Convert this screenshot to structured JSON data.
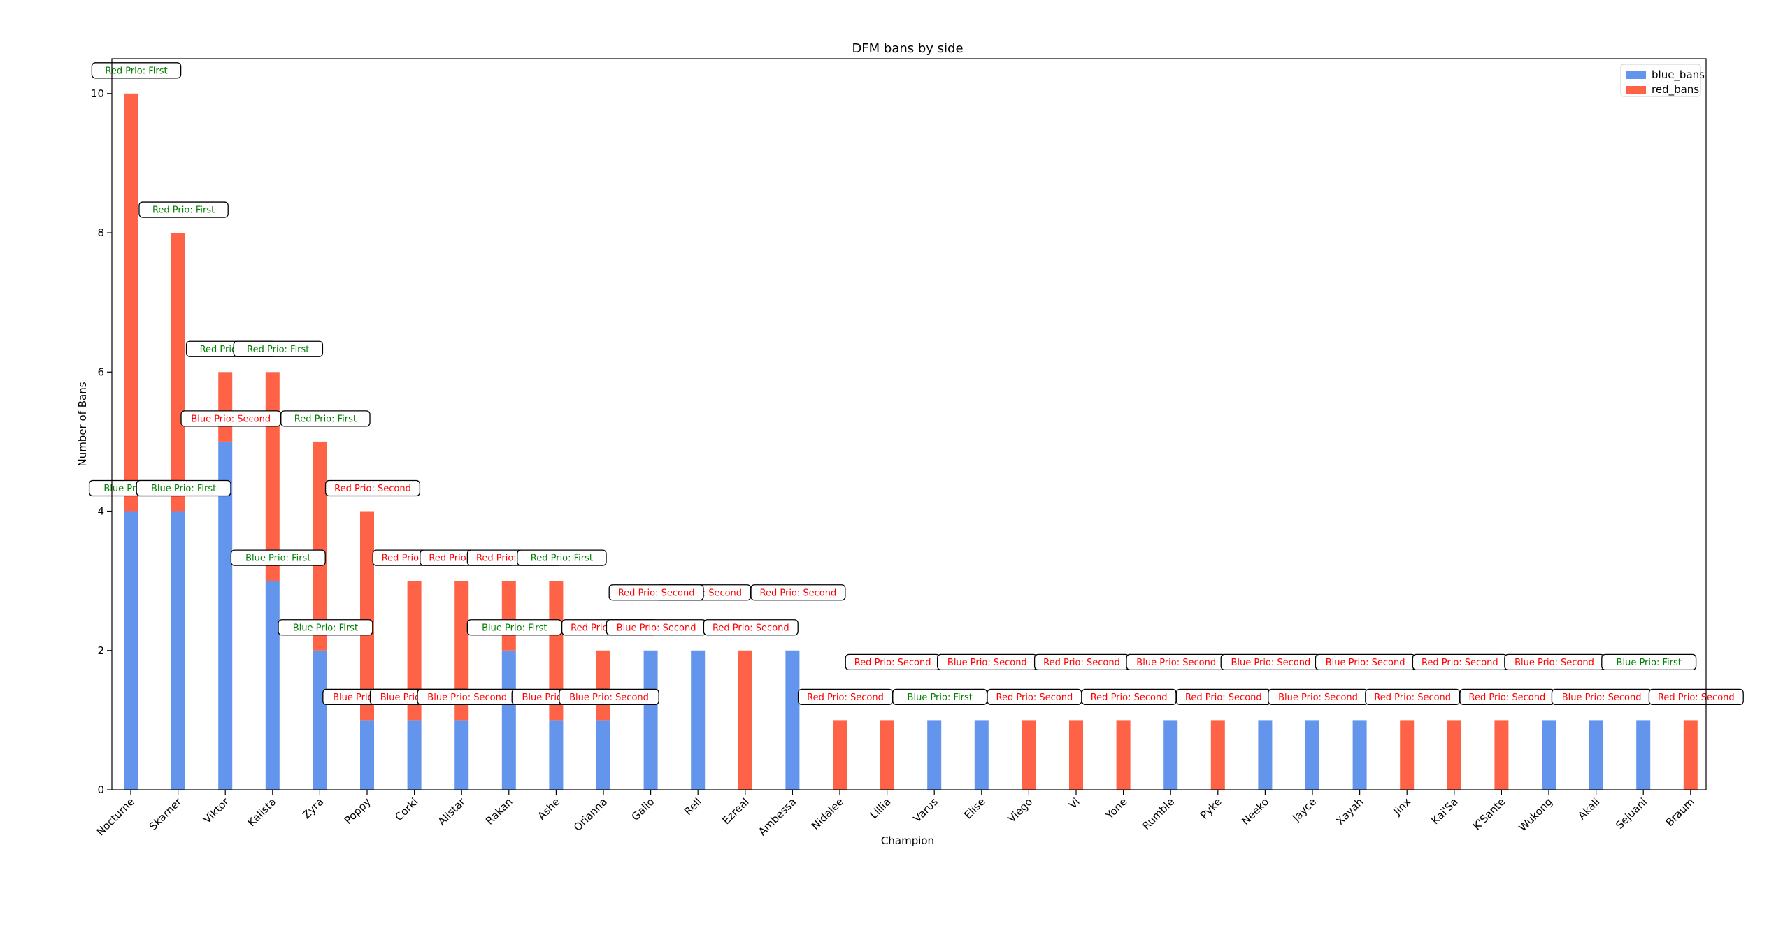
{
  "chart_data": {
    "type": "bar",
    "stacked": true,
    "title": "DFM bans by side",
    "xlabel": "Champion",
    "ylabel": "Number of Bans",
    "ylim": [
      0,
      10.5
    ],
    "yticks": [
      0,
      2,
      4,
      6,
      8,
      10
    ],
    "grid": false,
    "legend_position": "top-right",
    "categories": [
      "Nocturne",
      "Skarner",
      "Viktor",
      "Kalista",
      "Zyra",
      "Poppy",
      "Corki",
      "Alistar",
      "Rakan",
      "Ashe",
      "Orianna",
      "Galio",
      "Rell",
      "Ezreal",
      "Ambessa",
      "Nidalee",
      "Lillia",
      "Varus",
      "Elise",
      "Viego",
      "Vi",
      "Yone",
      "Rumble",
      "Pyke",
      "Neeko",
      "Jayce",
      "Xayah",
      "Jinx",
      "Kai'Sa",
      "K'Sante",
      "Wukong",
      "Akali",
      "Sejuani",
      "Braum"
    ],
    "series": [
      {
        "name": "blue_bans",
        "color": "#6495ED",
        "values": [
          4,
          4,
          5,
          3,
          2,
          1,
          1,
          1,
          2,
          1,
          1,
          2,
          2,
          0,
          2,
          0,
          0,
          1,
          1,
          0,
          0,
          0,
          1,
          0,
          1,
          1,
          1,
          0,
          0,
          0,
          1,
          1,
          1,
          0
        ]
      },
      {
        "name": "red_bans",
        "color": "#FF6347",
        "values": [
          6,
          4,
          1,
          3,
          3,
          3,
          2,
          2,
          1,
          2,
          1,
          0,
          0,
          2,
          0,
          1,
          1,
          0,
          0,
          1,
          1,
          1,
          0,
          1,
          0,
          0,
          0,
          1,
          1,
          1,
          0,
          0,
          0,
          1
        ]
      }
    ],
    "annotations": {
      "red_prio": [
        "Red Prio: First",
        "Red Prio: First",
        "Red Prio: First",
        "Red Prio: First",
        "Red Prio: First",
        "Red Prio: Second",
        "Red Prio: Second",
        "Red Prio: Second",
        "Red Prio: Second",
        "Red Prio: First",
        "Red Prio: Second",
        "",
        "",
        "Red Prio: Second",
        "",
        "Red Prio: Second",
        "",
        "",
        "",
        "Red Prio: Second",
        "",
        "Red Prio: Second",
        "",
        "Red Prio: Second",
        "",
        "",
        "",
        "Red Prio: Second",
        "",
        "Red Prio: Second",
        "",
        "",
        "",
        "Red Prio: Second"
      ],
      "blue_prio": [
        "Blue Prio: First",
        "Blue Prio: First",
        "Blue Prio: Second",
        "Blue Prio: First",
        "Blue Prio: First",
        "Blue Prio: Second",
        "Blue Prio: Second",
        "Blue Prio: Second",
        "Blue Prio: First",
        "Blue Prio: Second",
        "Blue Prio: Second",
        "Blue Prio: Second",
        "",
        "",
        "",
        "",
        "",
        "Blue Prio: First",
        "",
        "",
        "",
        "",
        "",
        "",
        "",
        "Blue Prio: Second",
        "",
        "",
        "",
        "",
        "",
        "Blue Prio: Second",
        "",
        ""
      ],
      "first_color": "#008000",
      "second_color": "#FF0000"
    },
    "side_prio_row": [
      {
        "index": 16,
        "text": "Red Prio: Second"
      },
      {
        "index": 18,
        "text": "Blue Prio: Second"
      },
      {
        "index": 20,
        "text": "Red Prio: Second"
      },
      {
        "index": 22,
        "text": "Blue Prio: Second"
      },
      {
        "index": 24,
        "text": "Blue Prio: Second"
      },
      {
        "index": 26,
        "text": "Blue Prio: Second"
      },
      {
        "index": 28,
        "text": "Red Prio: Second"
      },
      {
        "index": 30,
        "text": "Blue Prio: Second"
      },
      {
        "index": 32,
        "text": "Blue Prio: First"
      },
      {
        "index": 12,
        "text": "Red Prio: Second"
      },
      {
        "index": 14,
        "text": "Red Prio: Second"
      },
      {
        "index": 11,
        "text": "Red Prio: Second"
      }
    ]
  }
}
